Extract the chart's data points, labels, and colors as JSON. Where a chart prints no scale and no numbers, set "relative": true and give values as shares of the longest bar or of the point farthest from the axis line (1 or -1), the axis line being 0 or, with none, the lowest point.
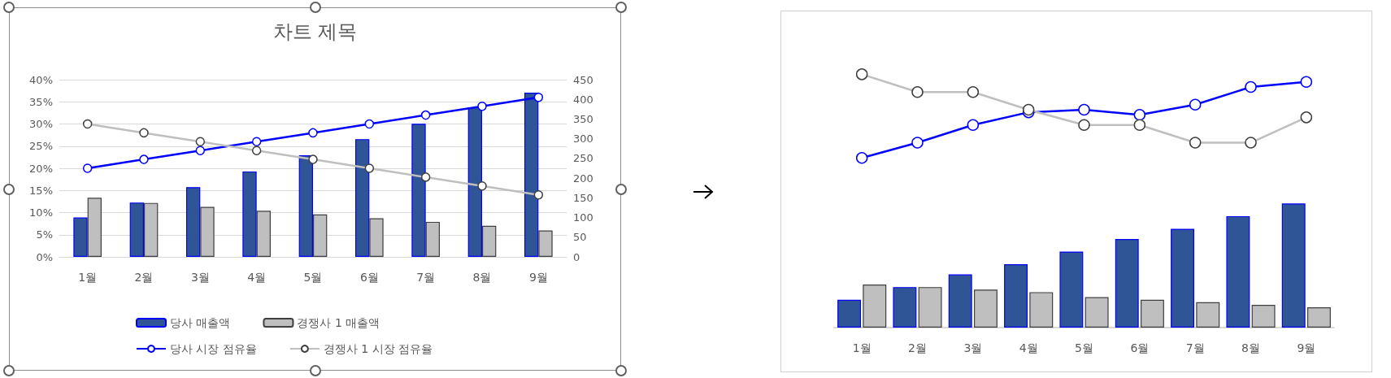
{
  "chart_data": [
    {
      "type": "bar",
      "title": "차트 제목",
      "categories": [
        "1월",
        "2월",
        "3월",
        "4월",
        "5월",
        "6월",
        "7월",
        "8월",
        "9월"
      ],
      "ylim": [
        0,
        40
      ],
      "yticks": [
        {
          "value": 0,
          "label": "0%"
        },
        {
          "value": 5,
          "label": "5%"
        },
        {
          "value": 10,
          "label": "10%"
        },
        {
          "value": 15,
          "label": "15%"
        },
        {
          "value": 20,
          "label": "20%"
        },
        {
          "value": 25,
          "label": "25%"
        },
        {
          "value": 30,
          "label": "30%"
        },
        {
          "value": 35,
          "label": "35%"
        },
        {
          "value": 40,
          "label": "40%"
        }
      ],
      "y2lim": [
        0,
        450
      ],
      "y2ticks": [
        0,
        50,
        100,
        150,
        200,
        250,
        300,
        350,
        400,
        450
      ],
      "grid": "y",
      "legend": "bottom",
      "marker": "circle",
      "series": [
        {
          "name": "당사 매출액",
          "axis": "y2",
          "color": "#2f5597",
          "values": [
            100,
            138,
            177,
            217,
            258,
            299,
            338,
            380,
            417
          ]
        },
        {
          "name": "경쟁사 1 매출액",
          "axis": "y2",
          "color": "#bfbfbf",
          "values": [
            150,
            137,
            127,
            117,
            108,
            98,
            89,
            79,
            67
          ]
        },
        {
          "name": "당사 시장 점유율",
          "type": "line",
          "color": "#0000ff",
          "values": [
            20,
            22,
            24,
            26,
            28,
            30,
            32,
            34,
            36
          ]
        },
        {
          "name": "경쟁사 1 시장 점유율",
          "type": "line",
          "color": "#bfbfbf",
          "values": [
            30,
            28,
            26,
            24,
            22,
            20,
            18,
            16,
            14
          ]
        }
      ]
    },
    {
      "type": "bar",
      "relative": true,
      "categories": [
        "1월",
        "2월",
        "3월",
        "4월",
        "5월",
        "6월",
        "7월",
        "8월",
        "9월"
      ],
      "tick_labels": "x",
      "marker": "circle",
      "series": [
        {
          "color": "#2f5597",
          "values": [
            0.11,
            0.16,
            0.21,
            0.25,
            0.3,
            0.35,
            0.39,
            0.44,
            0.49
          ]
        },
        {
          "color": "#bfbfbf",
          "values": [
            0.17,
            0.16,
            0.15,
            0.14,
            0.12,
            0.11,
            0.1,
            0.09,
            0.08
          ]
        },
        {
          "type": "line",
          "color": "#0000ff",
          "values": [
            0.67,
            0.73,
            0.8,
            0.85,
            0.86,
            0.84,
            0.88,
            0.95,
            0.97
          ]
        },
        {
          "type": "line",
          "color": "#bfbfbf",
          "values": [
            1,
            0.93,
            0.93,
            0.86,
            0.8,
            0.8,
            0.73,
            0.73,
            0.83
          ]
        }
      ]
    }
  ]
}
